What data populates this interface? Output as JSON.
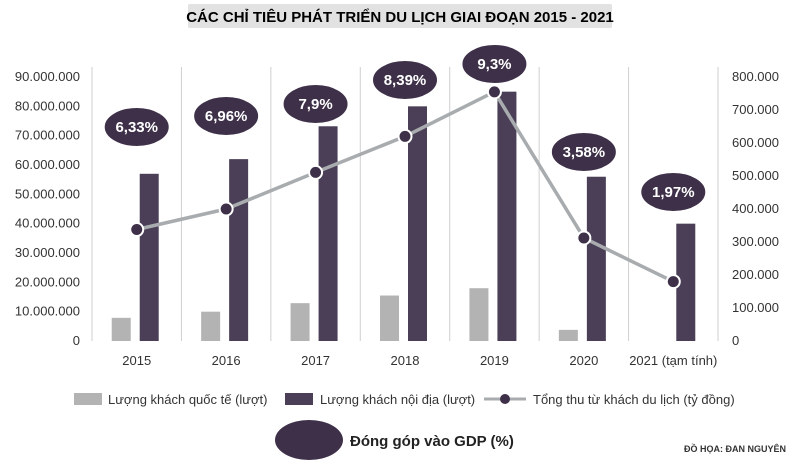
{
  "chart_data": {
    "type": "bar",
    "title": "CÁC CHỈ TIÊU PHÁT TRIỂN DU LỊCH GIAI ĐOẠN 2015 - 2021",
    "categories": [
      "2015",
      "2016",
      "2017",
      "2018",
      "2019",
      "2020",
      "2021 (tạm tính)"
    ],
    "y_left": {
      "ylim": [
        0,
        90000000
      ],
      "ticks": [
        "0",
        "10.000.000",
        "20.000.000",
        "30.000.000",
        "40.000.000",
        "50.000.000",
        "60.000.000",
        "70.000.000",
        "80.000.000",
        "90.000.000"
      ]
    },
    "y_right": {
      "ylim": [
        0,
        800000
      ],
      "ticks": [
        "0",
        "100.000",
        "200.000",
        "300.000",
        "400.000",
        "500.000",
        "600.000",
        "700.000",
        "800.000"
      ]
    },
    "series": [
      {
        "name": "Lượng khách quốc tế (lượt)",
        "kind": "bar",
        "axis": "left",
        "color": "#b3b3b3",
        "values": [
          7900000,
          10000000,
          12900000,
          15500000,
          18000000,
          3800000,
          null
        ]
      },
      {
        "name": "Lượng khách nội địa (lượt)",
        "kind": "bar",
        "axis": "left",
        "color": "#4a3f56",
        "values": [
          57000000,
          62000000,
          73200000,
          80000000,
          85000000,
          56000000,
          40000000
        ]
      },
      {
        "name": "Tổng thu từ khách du lịch (tỷ đồng)",
        "kind": "line",
        "axis": "right",
        "color": "#a8acae",
        "marker_color": "#3d3048",
        "values": [
          337830,
          400000,
          510900,
          620000,
          755000,
          312200,
          180000
        ]
      },
      {
        "name": "Đóng góp vào GDP (%)",
        "kind": "bubble",
        "color": "#3d3048",
        "values": [
          "6,33%",
          "6,96%",
          "7,9%",
          "8,39%",
          "9,3%",
          "3,58%",
          "1,97%"
        ]
      }
    ],
    "grid": "vertical",
    "legend": "bottom",
    "credit": "ĐỒ HỌA: ĐAN NGUYÊN"
  }
}
